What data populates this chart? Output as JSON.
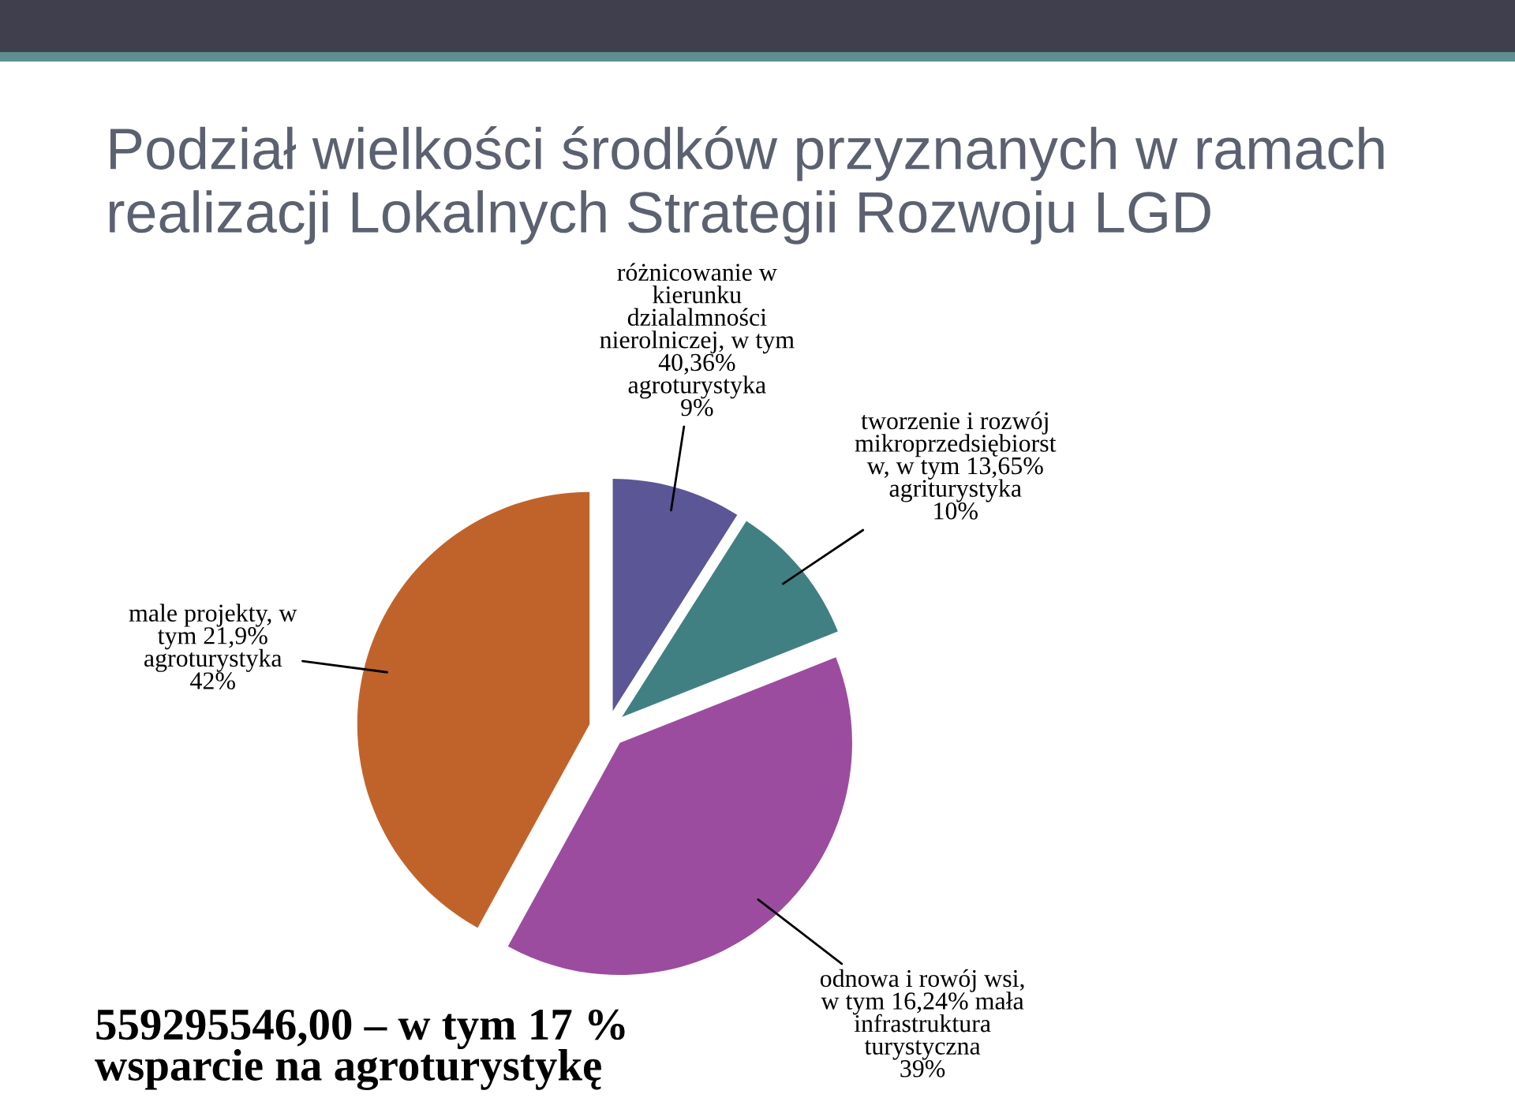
{
  "chart_data": {
    "type": "pie",
    "title": "Podział wielkości środków przyznanych w ramach\nrealizacji Lokalnych Strategii Rozwoju LGD",
    "categories": [
      "różnicowanie w\nkierunku\ndzialalmności\nnierolniczej, w tym\n40,36%\nagroturystyka",
      "tworzenie i rozwój\nmikroprzedsiębiorst\nw, w tym 13,65%\nagriturystyka",
      "odnowa i rowój wsi,\nw tym 16,24% mała\ninfrastruktura\nturystyczna",
      "male projekty, w\ntym 21,9%\nagroturystyka"
    ],
    "values": [
      9,
      10,
      39,
      42
    ],
    "value_labels": [
      "9%",
      "10%",
      "39%",
      "42%"
    ],
    "colors": [
      "#5b5696",
      "#418082",
      "#9c4c9f",
      "#c0632b"
    ],
    "annotations": [
      "559295546,00 – w tym 17 %\nwsparcie na agroturystykę"
    ]
  }
}
